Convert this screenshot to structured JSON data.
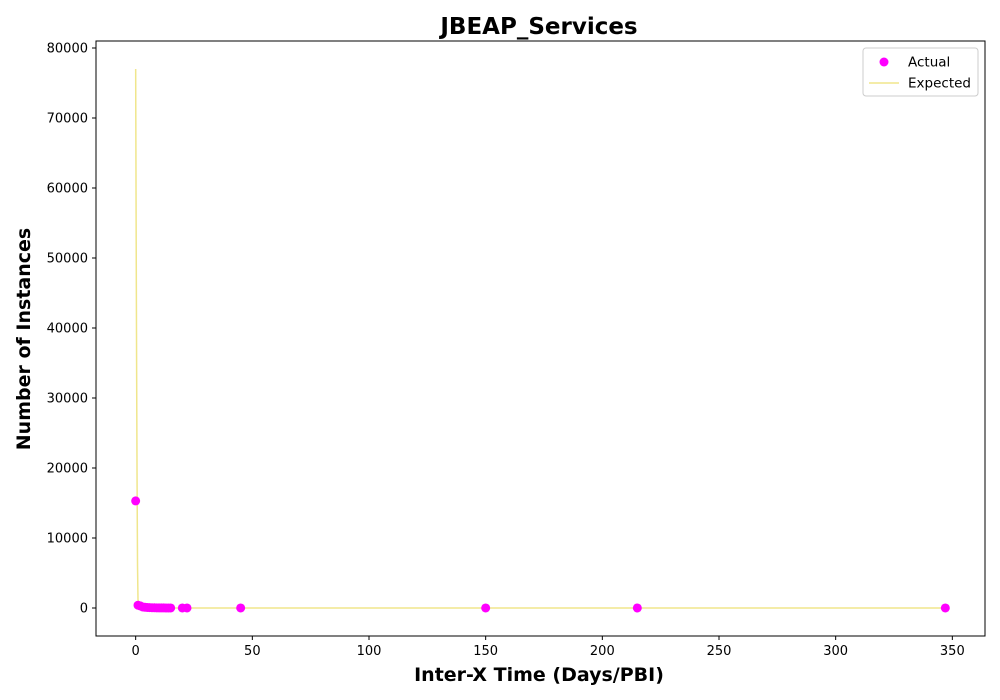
{
  "chart_data": {
    "type": "scatter",
    "title": "JBEAP_Services",
    "xlabel": "Inter-X Time (Days/PBI)",
    "ylabel": "Number of Instances",
    "xlim": [
      -17,
      364
    ],
    "ylim": [
      -4000,
      81000
    ],
    "xticks": [
      0,
      50,
      100,
      150,
      200,
      250,
      300,
      350
    ],
    "yticks": [
      0,
      10000,
      20000,
      30000,
      40000,
      50000,
      60000,
      70000,
      80000
    ],
    "grid": false,
    "legend_position": "top-right",
    "series": [
      {
        "name": "Actual",
        "kind": "scatter",
        "color": "#ff00ff",
        "x": [
          0,
          1,
          2,
          3,
          4,
          5,
          6,
          7,
          8,
          9,
          10,
          11,
          12,
          13,
          14,
          15,
          20,
          22,
          45,
          150,
          215,
          347
        ],
        "y": [
          15300,
          400,
          300,
          150,
          100,
          80,
          60,
          40,
          30,
          20,
          15,
          12,
          10,
          8,
          6,
          5,
          4,
          3,
          2,
          1,
          1,
          1
        ]
      },
      {
        "name": "Expected",
        "kind": "line",
        "color": "#f0e68c",
        "x": [
          0,
          0.2,
          0.4,
          0.6,
          0.8,
          1,
          1.5,
          2,
          3,
          5,
          10,
          20,
          50,
          100,
          150,
          200,
          250,
          300,
          347
        ],
        "y": [
          77000,
          55000,
          35000,
          18000,
          6000,
          1200,
          200,
          50,
          10,
          2,
          0,
          0,
          0,
          0,
          0,
          0,
          0,
          0,
          0
        ]
      }
    ]
  }
}
